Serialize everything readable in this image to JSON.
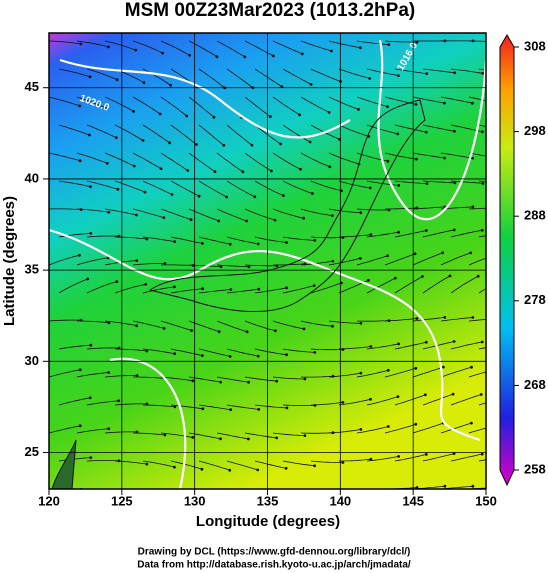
{
  "title": "MSM 00Z23Mar2023 (1013.2hPa)",
  "map": {
    "xlabel": "Longitude (degrees)",
    "ylabel": "Latitude  (degrees)",
    "xlim": [
      120,
      150
    ],
    "ylim": [
      23,
      48
    ],
    "xticks": [
      120,
      125,
      130,
      135,
      140,
      145,
      150
    ],
    "yticks": [
      25,
      30,
      35,
      40,
      45
    ],
    "contour_labels": [
      "1020.0",
      "1016.0"
    ]
  },
  "colorbar": {
    "lim": [
      258,
      308
    ],
    "ticks": [
      258,
      268,
      278,
      288,
      298,
      308
    ]
  },
  "credits": [
    "Drawing by DCL (https://www.gfd-dennou.org/library/dcl/)",
    "Data from http://database.rish.kyoto-u.ac.jp/arch/jmadata/"
  ]
}
